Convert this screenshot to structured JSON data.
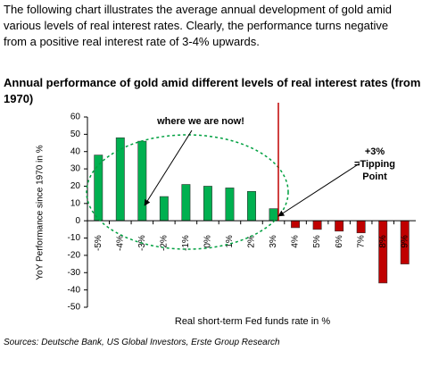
{
  "intro": {
    "lines": [
      "The following chart illustrates the average annual development of gold amid",
      "various levels of real interest rates. Clearly, the performance turns negative",
      "from a positive real interest rate of 3-4% upwards."
    ]
  },
  "chart_data": {
    "type": "bar",
    "title": "Annual performance of gold amid different levels of real interest rates (from 1970)",
    "y_label": "YoY Performance since 1970 in %",
    "x_label": "Real short-term Fed funds rate in %",
    "categories": [
      "-5%",
      "-4%",
      "-3%",
      "-2%",
      "-1%",
      "0%",
      "1%",
      "2%",
      "3%",
      "4%",
      "5%",
      "6%",
      "7%",
      "8%",
      "9%"
    ],
    "values": [
      38,
      48,
      46,
      14,
      21,
      20,
      19,
      17,
      7,
      -4,
      -5,
      -6,
      -7,
      -36,
      -25
    ],
    "color": "#00b050",
    "negative_color": "#c00000",
    "ylim": [
      -50,
      60
    ],
    "yticks": [
      -50,
      -40,
      -30,
      -20,
      -10,
      0,
      10,
      20,
      30,
      40,
      50,
      60
    ],
    "annotations": [
      "where we are now!",
      "+3%",
      "=Tipping",
      "Point"
    ]
  },
  "source": "Sources: Deutsche Bank, US Global Investors, Erste Group Research"
}
